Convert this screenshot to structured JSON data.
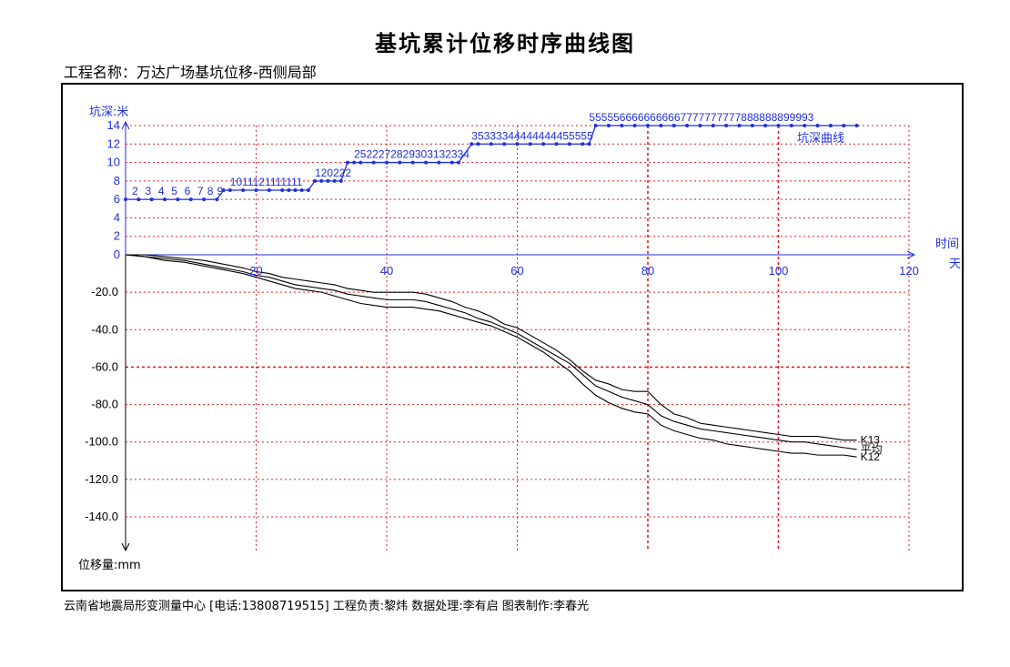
{
  "header": {
    "title": "基坑累计位移时序曲线图",
    "project": "工程名称：万达广场基坑位移-西侧局部"
  },
  "footer": {
    "text": "云南省地震局形变测量中心 [电话:13808719515] 工程负责:黎炜 数据处理:李有启 图表制作:李春光"
  },
  "colors": {
    "depth": "#1f2fe0",
    "grid": "#e02020",
    "displacement": "#000000"
  },
  "chart_data": {
    "type": "line",
    "x_axis": {
      "label": [
        "时间",
        "天"
      ],
      "min": 0,
      "max": 120,
      "ticks": [
        20,
        40,
        60,
        80,
        100,
        120
      ],
      "tick_labels": [
        "20",
        "40",
        "60",
        "80",
        "100",
        "120"
      ]
    },
    "depth_axis": {
      "label": "坑深:米",
      "min": 0,
      "max": 14,
      "ticks": [
        0,
        2,
        4,
        6,
        8,
        10,
        12,
        14
      ],
      "tick_labels": [
        "0",
        "2",
        "4",
        "6",
        "8",
        "10",
        "12",
        "14"
      ]
    },
    "displacement_axis": {
      "label": "位移量:mm",
      "min": -140,
      "max": 0,
      "ticks": [
        -20,
        -40,
        -60,
        -80,
        -100,
        -120,
        -140
      ],
      "tick_labels": [
        "-20.0",
        "-40.0",
        "-60.0",
        "-80.0",
        "-100.0",
        "-120.0",
        "-140.0"
      ]
    },
    "grid": true,
    "depth_series": {
      "name": "坑深曲线",
      "points": [
        [
          0,
          6
        ],
        [
          2,
          6
        ],
        [
          4,
          6
        ],
        [
          6,
          6
        ],
        [
          8,
          6
        ],
        [
          10,
          6
        ],
        [
          12,
          6
        ],
        [
          14,
          6
        ],
        [
          15,
          7
        ],
        [
          16,
          7
        ],
        [
          18,
          7
        ],
        [
          20,
          7
        ],
        [
          22,
          7
        ],
        [
          24,
          7
        ],
        [
          25,
          7
        ],
        [
          26,
          7
        ],
        [
          27,
          7
        ],
        [
          28,
          7
        ],
        [
          29,
          8
        ],
        [
          30,
          8
        ],
        [
          31,
          8
        ],
        [
          32,
          8
        ],
        [
          33,
          8
        ],
        [
          34,
          10
        ],
        [
          35,
          10
        ],
        [
          36,
          10
        ],
        [
          38,
          10
        ],
        [
          40,
          10
        ],
        [
          42,
          10
        ],
        [
          44,
          10
        ],
        [
          46,
          10
        ],
        [
          48,
          10
        ],
        [
          50,
          10
        ],
        [
          51,
          10
        ],
        [
          53,
          12
        ],
        [
          54,
          12
        ],
        [
          56,
          12
        ],
        [
          58,
          12
        ],
        [
          60,
          12
        ],
        [
          62,
          12
        ],
        [
          64,
          12
        ],
        [
          66,
          12
        ],
        [
          68,
          12
        ],
        [
          70,
          12
        ],
        [
          71,
          12
        ],
        [
          72,
          14
        ],
        [
          74,
          14
        ],
        [
          76,
          14
        ],
        [
          78,
          14
        ],
        [
          80,
          14
        ],
        [
          82,
          14
        ],
        [
          84,
          14
        ],
        [
          86,
          14
        ],
        [
          88,
          14
        ],
        [
          90,
          14
        ],
        [
          92,
          14
        ],
        [
          94,
          14
        ],
        [
          96,
          14
        ],
        [
          98,
          14
        ],
        [
          100,
          14
        ],
        [
          102,
          14
        ],
        [
          104,
          14
        ],
        [
          106,
          14
        ],
        [
          108,
          14
        ],
        [
          110,
          14
        ],
        [
          112,
          14
        ]
      ],
      "labels": [
        {
          "x": 1,
          "y": 6,
          "text": "2"
        },
        {
          "x": 3,
          "y": 6,
          "text": "3"
        },
        {
          "x": 5,
          "y": 6,
          "text": "4"
        },
        {
          "x": 7,
          "y": 6,
          "text": "5"
        },
        {
          "x": 9,
          "y": 6,
          "text": "6"
        },
        {
          "x": 11,
          "y": 6,
          "text": "7"
        },
        {
          "x": 12.5,
          "y": 6,
          "text": "8"
        },
        {
          "x": 14,
          "y": 6,
          "text": "9"
        },
        {
          "x": 16,
          "y": 7,
          "text": "1011121111111"
        },
        {
          "x": 29,
          "y": 8,
          "text": "120222"
        },
        {
          "x": 35,
          "y": 10,
          "text": "2522272829303132334"
        },
        {
          "x": 53,
          "y": 12,
          "text": "35333344444444455555"
        },
        {
          "x": 71,
          "y": 14,
          "text": "5555566666666667777777777888888899993"
        }
      ]
    },
    "series": [
      {
        "name": "K13",
        "points": [
          [
            0,
            0
          ],
          [
            3,
            0
          ],
          [
            6,
            -1
          ],
          [
            9,
            -2
          ],
          [
            12,
            -3
          ],
          [
            15,
            -5
          ],
          [
            18,
            -7
          ],
          [
            20,
            -9
          ],
          [
            22,
            -10
          ],
          [
            24,
            -12
          ],
          [
            26,
            -13
          ],
          [
            28,
            -14
          ],
          [
            30,
            -15
          ],
          [
            32,
            -16
          ],
          [
            34,
            -18
          ],
          [
            36,
            -19
          ],
          [
            38,
            -20
          ],
          [
            40,
            -20
          ],
          [
            42,
            -20
          ],
          [
            44,
            -20
          ],
          [
            46,
            -21
          ],
          [
            48,
            -23
          ],
          [
            50,
            -25
          ],
          [
            52,
            -28
          ],
          [
            54,
            -30
          ],
          [
            56,
            -33
          ],
          [
            58,
            -37
          ],
          [
            60,
            -39
          ],
          [
            62,
            -43
          ],
          [
            64,
            -47
          ],
          [
            66,
            -51
          ],
          [
            68,
            -56
          ],
          [
            70,
            -62
          ],
          [
            72,
            -67
          ],
          [
            74,
            -69
          ],
          [
            76,
            -72
          ],
          [
            78,
            -73
          ],
          [
            80,
            -73
          ],
          [
            82,
            -80
          ],
          [
            84,
            -85
          ],
          [
            86,
            -87
          ],
          [
            88,
            -90
          ],
          [
            90,
            -91
          ],
          [
            92,
            -92
          ],
          [
            94,
            -93
          ],
          [
            96,
            -94
          ],
          [
            98,
            -95
          ],
          [
            100,
            -96
          ],
          [
            102,
            -97
          ],
          [
            104,
            -97
          ],
          [
            106,
            -97
          ],
          [
            108,
            -98
          ],
          [
            110,
            -99
          ],
          [
            112,
            -99
          ]
        ]
      },
      {
        "name": "平均",
        "points": [
          [
            0,
            0
          ],
          [
            3,
            -1
          ],
          [
            6,
            -2
          ],
          [
            9,
            -3
          ],
          [
            12,
            -5
          ],
          [
            15,
            -7
          ],
          [
            18,
            -9
          ],
          [
            20,
            -11
          ],
          [
            22,
            -12
          ],
          [
            24,
            -14
          ],
          [
            26,
            -16
          ],
          [
            28,
            -17
          ],
          [
            30,
            -18
          ],
          [
            32,
            -19
          ],
          [
            34,
            -21
          ],
          [
            36,
            -22
          ],
          [
            38,
            -23
          ],
          [
            40,
            -24
          ],
          [
            42,
            -24
          ],
          [
            44,
            -24
          ],
          [
            46,
            -25
          ],
          [
            48,
            -27
          ],
          [
            50,
            -29
          ],
          [
            52,
            -31
          ],
          [
            54,
            -34
          ],
          [
            56,
            -36
          ],
          [
            58,
            -39
          ],
          [
            60,
            -42
          ],
          [
            62,
            -46
          ],
          [
            64,
            -50
          ],
          [
            66,
            -54
          ],
          [
            68,
            -58
          ],
          [
            70,
            -64
          ],
          [
            72,
            -70
          ],
          [
            74,
            -73
          ],
          [
            76,
            -76
          ],
          [
            78,
            -78
          ],
          [
            80,
            -80
          ],
          [
            82,
            -86
          ],
          [
            84,
            -89
          ],
          [
            86,
            -91
          ],
          [
            88,
            -93
          ],
          [
            90,
            -94
          ],
          [
            92,
            -95
          ],
          [
            94,
            -96
          ],
          [
            96,
            -97
          ],
          [
            98,
            -98
          ],
          [
            100,
            -99
          ],
          [
            102,
            -100
          ],
          [
            104,
            -100
          ],
          [
            106,
            -101
          ],
          [
            108,
            -102
          ],
          [
            110,
            -103
          ],
          [
            112,
            -104
          ]
        ]
      },
      {
        "name": "K12",
        "points": [
          [
            0,
            0
          ],
          [
            3,
            -1
          ],
          [
            6,
            -3
          ],
          [
            9,
            -4
          ],
          [
            12,
            -6
          ],
          [
            15,
            -8
          ],
          [
            18,
            -10
          ],
          [
            20,
            -12
          ],
          [
            22,
            -14
          ],
          [
            24,
            -16
          ],
          [
            26,
            -18
          ],
          [
            28,
            -19
          ],
          [
            30,
            -20
          ],
          [
            32,
            -22
          ],
          [
            34,
            -24
          ],
          [
            36,
            -26
          ],
          [
            38,
            -27
          ],
          [
            40,
            -28
          ],
          [
            42,
            -28
          ],
          [
            44,
            -28
          ],
          [
            46,
            -29
          ],
          [
            48,
            -30
          ],
          [
            50,
            -32
          ],
          [
            52,
            -34
          ],
          [
            54,
            -36
          ],
          [
            56,
            -38
          ],
          [
            58,
            -41
          ],
          [
            60,
            -44
          ],
          [
            62,
            -48
          ],
          [
            64,
            -52
          ],
          [
            66,
            -57
          ],
          [
            68,
            -62
          ],
          [
            70,
            -69
          ],
          [
            72,
            -75
          ],
          [
            74,
            -79
          ],
          [
            76,
            -82
          ],
          [
            78,
            -84
          ],
          [
            80,
            -85
          ],
          [
            82,
            -91
          ],
          [
            84,
            -94
          ],
          [
            86,
            -96
          ],
          [
            88,
            -98
          ],
          [
            90,
            -99
          ],
          [
            92,
            -101
          ],
          [
            94,
            -102
          ],
          [
            96,
            -103
          ],
          [
            98,
            -104
          ],
          [
            100,
            -105
          ],
          [
            102,
            -106
          ],
          [
            104,
            -106
          ],
          [
            106,
            -107
          ],
          [
            108,
            -107
          ],
          [
            110,
            -107
          ],
          [
            112,
            -108
          ]
        ]
      }
    ]
  }
}
